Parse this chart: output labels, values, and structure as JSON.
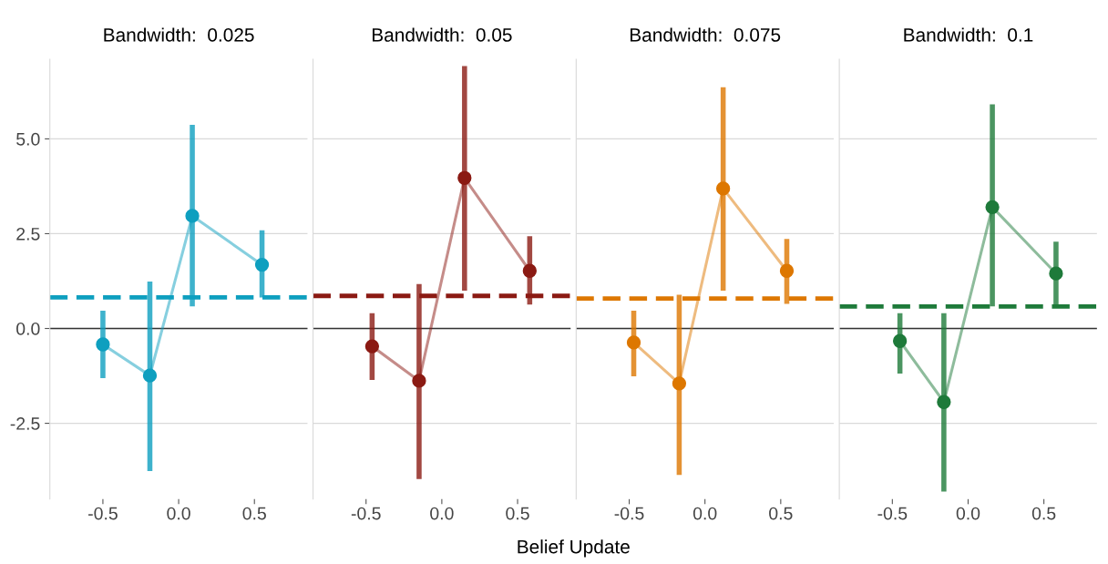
{
  "chart_data": [
    {
      "type": "line",
      "title": "Bandwidth:  0.025",
      "x": [
        -0.5,
        -0.19,
        0.09,
        0.55
      ],
      "xlim": [
        -0.85,
        0.85
      ],
      "ylim": [
        -4.5,
        7.1
      ],
      "xticks": [
        {
          "value": -0.5,
          "label": "-0.5"
        },
        {
          "value": 0,
          "label": "0.0"
        },
        {
          "value": 0.5,
          "label": "0.5"
        }
      ],
      "yticks": [
        {
          "value": -2.5,
          "label": "-2.5"
        },
        {
          "value": 0,
          "label": "0.0"
        },
        {
          "value": 2.5,
          "label": "2.5"
        },
        {
          "value": 5,
          "label": "5.0"
        }
      ],
      "grid": "y",
      "marker": "circle",
      "line_style": "solid",
      "series": [
        {
          "color": "#0e9fbf",
          "values": [
            -0.42,
            -1.24,
            2.97,
            1.68
          ],
          "errors": [
            [
              -1.31,
              0.47
            ],
            [
              -3.76,
              1.24
            ],
            [
              0.58,
              5.37
            ],
            [
              0.82,
              2.59
            ]
          ]
        }
      ],
      "ref_lines": [
        {
          "axis": "y",
          "value": 0,
          "color": "#333333",
          "line_style": "solid"
        },
        {
          "axis": "y",
          "value": 0.82,
          "color": "#0e9fbf",
          "line_style": "dashed"
        }
      ]
    },
    {
      "type": "line",
      "title": "Bandwidth:  0.05",
      "xlabel": "Belief Update",
      "x": [
        -0.46,
        -0.15,
        0.15,
        0.58
      ],
      "xlim": [
        -0.85,
        0.85
      ],
      "ylim": [
        -4.5,
        7.1
      ],
      "xticks": [
        {
          "value": -0.5,
          "label": "-0.5"
        },
        {
          "value": 0,
          "label": "0.0"
        },
        {
          "value": 0.5,
          "label": "0.5"
        }
      ],
      "yticks": [
        {
          "value": -2.5,
          "label": null
        },
        {
          "value": 0,
          "label": null
        },
        {
          "value": 2.5,
          "label": null
        },
        {
          "value": 5,
          "label": null
        }
      ],
      "grid": "y",
      "marker": "circle",
      "line_style": "solid",
      "tick_labels": "x",
      "series": [
        {
          "color": "#8b1a13",
          "values": [
            -0.47,
            -1.38,
            3.97,
            1.52
          ],
          "errors": [
            [
              -1.36,
              0.4
            ],
            [
              -3.97,
              1.17
            ],
            [
              1.0,
              6.92
            ],
            [
              0.63,
              2.43
            ]
          ]
        }
      ],
      "ref_lines": [
        {
          "axis": "y",
          "value": 0,
          "color": "#333333",
          "line_style": "solid"
        },
        {
          "axis": "y",
          "value": 0.86,
          "color": "#8b1a13",
          "line_style": "dashed"
        }
      ]
    },
    {
      "type": "line",
      "title": "Bandwidth:  0.075",
      "x": [
        -0.47,
        -0.17,
        0.12,
        0.54
      ],
      "xlim": [
        -0.85,
        0.85
      ],
      "ylim": [
        -4.5,
        7.1
      ],
      "xticks": [
        {
          "value": -0.5,
          "label": "-0.5"
        },
        {
          "value": 0,
          "label": "0.0"
        },
        {
          "value": 0.5,
          "label": "0.5"
        }
      ],
      "yticks": [
        {
          "value": -2.5,
          "label": null
        },
        {
          "value": 0,
          "label": null
        },
        {
          "value": 2.5,
          "label": null
        },
        {
          "value": 5,
          "label": null
        }
      ],
      "grid": "y",
      "marker": "circle",
      "line_style": "solid",
      "tick_labels": "x",
      "series": [
        {
          "color": "#dd7700",
          "values": [
            -0.37,
            -1.45,
            3.69,
            1.52
          ],
          "errors": [
            [
              -1.26,
              0.47
            ],
            [
              -3.86,
              0.89
            ],
            [
              1.0,
              6.36
            ],
            [
              0.65,
              2.36
            ]
          ]
        }
      ],
      "ref_lines": [
        {
          "axis": "y",
          "value": 0,
          "color": "#333333",
          "line_style": "solid"
        },
        {
          "axis": "y",
          "value": 0.79,
          "color": "#dd7700",
          "line_style": "dashed"
        }
      ]
    },
    {
      "type": "line",
      "title": "Bandwidth:  0.1",
      "x": [
        -0.45,
        -0.16,
        0.16,
        0.58
      ],
      "xlim": [
        -0.85,
        0.85
      ],
      "ylim": [
        -4.5,
        7.1
      ],
      "xticks": [
        {
          "value": -0.5,
          "label": "-0.5"
        },
        {
          "value": 0,
          "label": "0.0"
        },
        {
          "value": 0.5,
          "label": "0.5"
        }
      ],
      "yticks": [
        {
          "value": -2.5,
          "label": null
        },
        {
          "value": 0,
          "label": null
        },
        {
          "value": 2.5,
          "label": null
        },
        {
          "value": 5,
          "label": null
        }
      ],
      "grid": "y",
      "marker": "circle",
      "line_style": "solid",
      "tick_labels": "x",
      "series": [
        {
          "color": "#1e7a3a",
          "values": [
            -0.33,
            -1.94,
            3.2,
            1.45
          ],
          "errors": [
            [
              -1.19,
              0.4
            ],
            [
              -4.3,
              0.4
            ],
            [
              0.58,
              5.91
            ],
            [
              0.58,
              2.29
            ]
          ]
        }
      ],
      "ref_lines": [
        {
          "axis": "y",
          "value": 0,
          "color": "#333333",
          "line_style": "solid"
        },
        {
          "axis": "y",
          "value": 0.58,
          "color": "#1e7a3a",
          "line_style": "dashed"
        }
      ]
    }
  ]
}
